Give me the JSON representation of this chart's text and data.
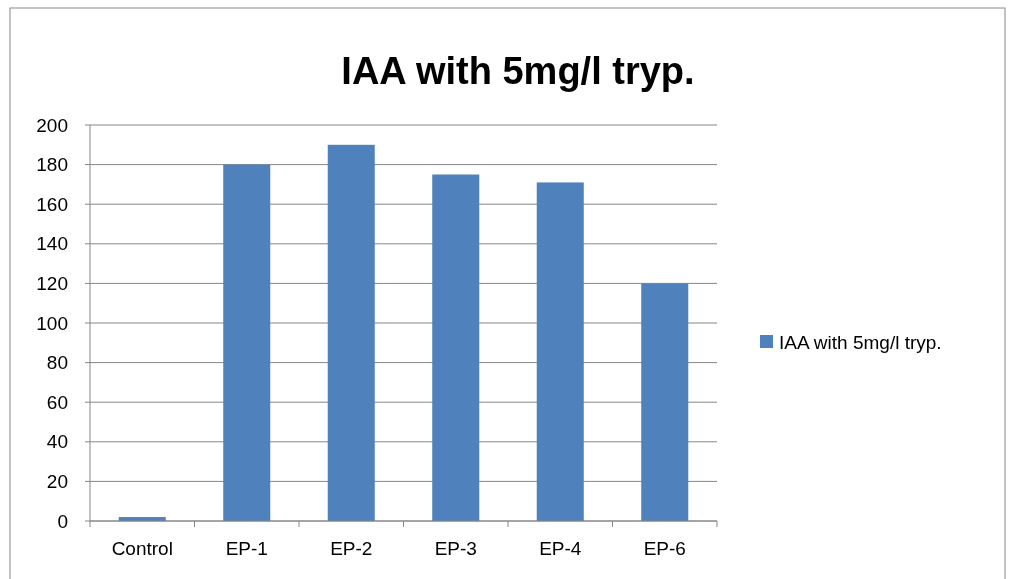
{
  "chart_data": {
    "type": "bar",
    "title": "IAA with 5mg/l tryp.",
    "categories": [
      "Control",
      "EP-1",
      "EP-2",
      "EP-3",
      "EP-4",
      "EP-6"
    ],
    "series": [
      {
        "name": "IAA with 5mg/l tryp.",
        "color": "#4f81bd",
        "values": [
          2,
          180,
          190,
          175,
          171,
          120
        ]
      }
    ],
    "ylim": [
      0,
      200
    ],
    "yticks": [
      0,
      20,
      40,
      60,
      80,
      100,
      120,
      140,
      160,
      180,
      200
    ],
    "grid": "y",
    "legend": "right"
  }
}
